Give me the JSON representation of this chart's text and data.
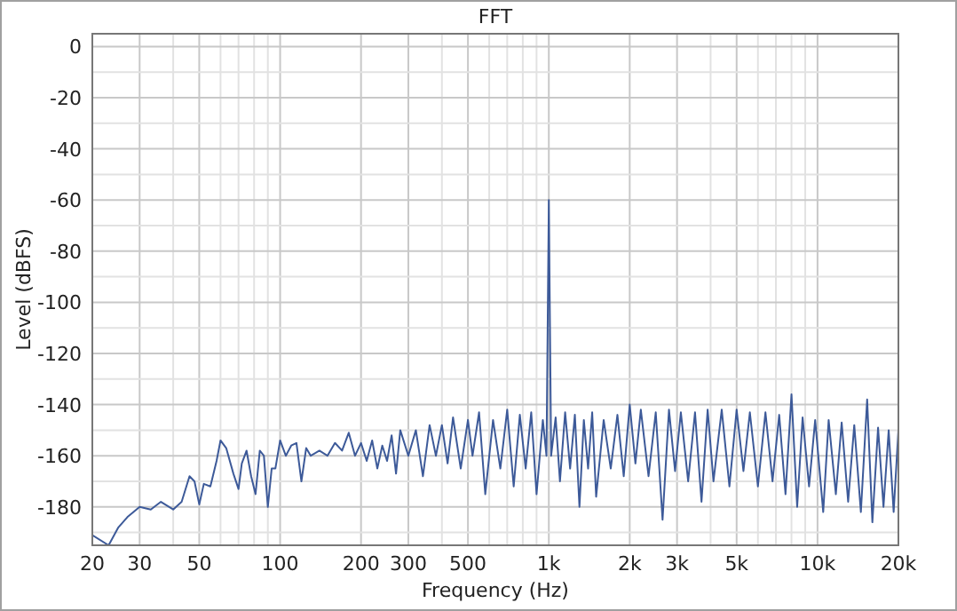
{
  "chart_data": {
    "type": "line",
    "title": "FFT",
    "xlabel": "Frequency (Hz)",
    "ylabel": "Level (dBFS)",
    "log": "x",
    "grid": true,
    "xlim": [
      20,
      20000
    ],
    "ylim": [
      -195,
      5
    ],
    "xticks": [
      20,
      30,
      {
        "value": 40,
        "label": null
      },
      50,
      {
        "value": 60,
        "label": null
      },
      {
        "value": 70,
        "label": null
      },
      {
        "value": 80,
        "label": null
      },
      {
        "value": 90,
        "label": null
      },
      100,
      200,
      300,
      {
        "value": 400,
        "label": null
      },
      500,
      {
        "value": 600,
        "label": null
      },
      {
        "value": 700,
        "label": null
      },
      {
        "value": 800,
        "label": null
      },
      {
        "value": 900,
        "label": null
      },
      {
        "value": 1000,
        "label": "1k"
      },
      {
        "value": 2000,
        "label": "2k"
      },
      {
        "value": 3000,
        "label": "3k"
      },
      {
        "value": 4000,
        "label": null
      },
      {
        "value": 5000,
        "label": "5k"
      },
      {
        "value": 6000,
        "label": null
      },
      {
        "value": 7000,
        "label": null
      },
      {
        "value": 8000,
        "label": null
      },
      {
        "value": 9000,
        "label": null
      },
      {
        "value": 10000,
        "label": "10k"
      },
      {
        "value": 20000,
        "label": "20k"
      }
    ],
    "yticks": [
      0,
      {
        "value": -10,
        "label": null
      },
      -20,
      {
        "value": -30,
        "label": null
      },
      -40,
      {
        "value": -50,
        "label": null
      },
      -60,
      {
        "value": -70,
        "label": null
      },
      -80,
      {
        "value": -90,
        "label": null
      },
      -100,
      {
        "value": -110,
        "label": null
      },
      -120,
      {
        "value": -130,
        "label": null
      },
      -140,
      {
        "value": -150,
        "label": null
      },
      -160,
      {
        "value": -170,
        "label": null
      },
      -180,
      {
        "value": -190,
        "label": null
      }
    ],
    "series": [
      {
        "color": "#3d5a99",
        "x": [
          20,
          23,
          25,
          27,
          30,
          33,
          36,
          40,
          43,
          46,
          48,
          50,
          52,
          55,
          58,
          60,
          63,
          67,
          70,
          72,
          75,
          78,
          81,
          84,
          87,
          90,
          93,
          96,
          100,
          105,
          110,
          115,
          120,
          125,
          130,
          140,
          150,
          160,
          170,
          180,
          190,
          200,
          210,
          220,
          230,
          240,
          250,
          260,
          270,
          280,
          300,
          320,
          340,
          360,
          380,
          400,
          420,
          440,
          470,
          500,
          520,
          550,
          580,
          620,
          660,
          700,
          740,
          780,
          820,
          860,
          900,
          950,
          980,
          1000,
          1020,
          1060,
          1100,
          1150,
          1200,
          1250,
          1300,
          1350,
          1400,
          1450,
          1500,
          1600,
          1700,
          1800,
          1900,
          2000,
          2100,
          2200,
          2350,
          2500,
          2650,
          2800,
          2950,
          3100,
          3300,
          3500,
          3700,
          3900,
          4100,
          4400,
          4700,
          5000,
          5300,
          5600,
          6000,
          6400,
          6800,
          7200,
          7600,
          8000,
          8400,
          8800,
          9300,
          9800,
          10500,
          11000,
          11700,
          12300,
          13000,
          13700,
          14500,
          15300,
          16000,
          16800,
          17600,
          18400,
          19200,
          20000
        ],
        "values": [
          -191,
          -195,
          -188,
          -184,
          -180,
          -181,
          -178,
          -181,
          -178,
          -168,
          -170,
          -179,
          -171,
          -172,
          -162,
          -154,
          -157,
          -167,
          -173,
          -163,
          -158,
          -168,
          -175,
          -158,
          -160,
          -180,
          -165,
          -165,
          -154,
          -160,
          -156,
          -155,
          -170,
          -157,
          -160,
          -158,
          -160,
          -155,
          -158,
          -151,
          -160,
          -155,
          -162,
          -154,
          -165,
          -156,
          -162,
          -152,
          -167,
          -150,
          -160,
          -150,
          -168,
          -148,
          -160,
          -148,
          -163,
          -145,
          -165,
          -146,
          -160,
          -143,
          -175,
          -146,
          -165,
          -142,
          -172,
          -144,
          -165,
          -143,
          -175,
          -146,
          -160,
          -60,
          -160,
          -145,
          -170,
          -143,
          -165,
          -144,
          -180,
          -146,
          -165,
          -143,
          -176,
          -146,
          -165,
          -144,
          -168,
          -140,
          -163,
          -142,
          -168,
          -143,
          -185,
          -142,
          -166,
          -143,
          -170,
          -143,
          -178,
          -142,
          -170,
          -142,
          -172,
          -142,
          -166,
          -143,
          -172,
          -143,
          -170,
          -144,
          -175,
          -136,
          -180,
          -145,
          -172,
          -146,
          -182,
          -146,
          -175,
          -147,
          -178,
          -148,
          -182,
          -138,
          -186,
          -149,
          -180,
          -150,
          -182,
          -150
        ]
      }
    ]
  }
}
